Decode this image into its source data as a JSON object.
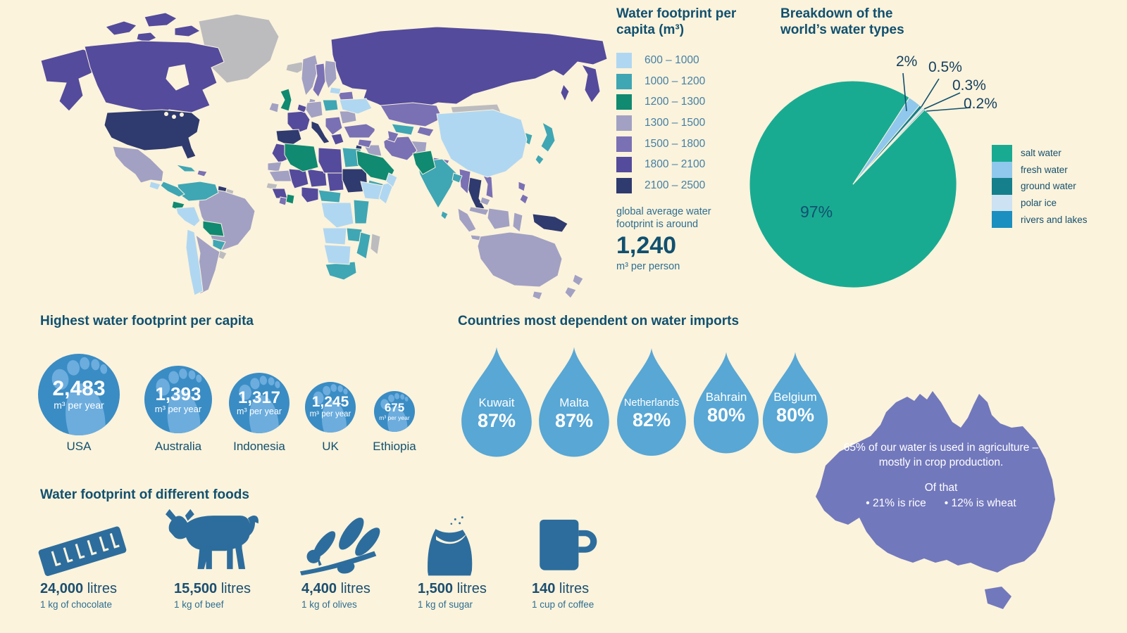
{
  "palette": {
    "background": "#fbf3dc",
    "nodata": "#bcbcbf",
    "b600": "#b0d7f1",
    "b1000": "#3fa6b4",
    "b1200": "#108a70",
    "b1300": "#a2a1c3",
    "b1500": "#7a70b4",
    "b1800": "#544b9c",
    "b2100": "#2f3a6e",
    "circle_blue": "#3a8cc4",
    "foot_light": "#6cadde",
    "drop_blue": "#58a7d5",
    "australia_fill": "#7278bc",
    "icon_blue": "#2d6d9d",
    "heading": "#11506f"
  },
  "map_legend": {
    "title": "Water footprint per capita (m³)",
    "bins": [
      {
        "label": "600 – 1000",
        "color": "#b0d7f1"
      },
      {
        "label": "1000 – 1200",
        "color": "#3fa6b4"
      },
      {
        "label": "1200 – 1300",
        "color": "#108a70"
      },
      {
        "label": "1300 – 1500",
        "color": "#a2a1c3"
      },
      {
        "label": "1500 – 1800",
        "color": "#7a70b4"
      },
      {
        "label": "1800 – 2100",
        "color": "#544b9c"
      },
      {
        "label": "2100 – 2500",
        "color": "#2f3a6e"
      }
    ],
    "note": "global average water footprint is around",
    "average_value": "1,240",
    "average_unit": "m³ per person"
  },
  "pie": {
    "title": "Breakdown of the world’s water types",
    "slices": [
      {
        "label": "salt water",
        "pct": 97,
        "display": "97%",
        "color": "#19ab92"
      },
      {
        "label": "fresh water",
        "pct": 2,
        "display": "2%",
        "color": "#8fc8ec"
      },
      {
        "label": "ground water",
        "pct": 0.5,
        "display": "0.5%",
        "color": "#157f8b"
      },
      {
        "label": "polar ice",
        "pct": 0.3,
        "display": "0.3%",
        "color": "#cde2f2"
      },
      {
        "label": "rivers and lakes",
        "pct": 0.2,
        "display": "0.2%",
        "color": "#1b8fbf"
      }
    ]
  },
  "footprints": {
    "title": "Highest water footprint per capita",
    "unit": "m³ per year",
    "items": [
      {
        "country": "USA",
        "value": "2,483"
      },
      {
        "country": "Australia",
        "value": "1,393"
      },
      {
        "country": "Indonesia",
        "value": "1,317"
      },
      {
        "country": "UK",
        "value": "1,245"
      },
      {
        "country": "Ethiopia",
        "value": "675"
      }
    ]
  },
  "imports": {
    "title": "Countries most dependent on water imports",
    "items": [
      {
        "country": "Kuwait",
        "pct": "87%"
      },
      {
        "country": "Malta",
        "pct": "87%"
      },
      {
        "country": "Netherlands",
        "pct": "82%"
      },
      {
        "country": "Bahrain",
        "pct": "80%"
      },
      {
        "country": "Belgium",
        "pct": "80%"
      }
    ]
  },
  "australia": {
    "line1": "65% of our water is used in agriculture – mostly in crop production.",
    "line2": "Of that",
    "bullet1": "• 21% is rice",
    "bullet2": "• 12% is wheat"
  },
  "foods": {
    "title": "Water footprint of different foods",
    "items": [
      {
        "value": "24,000",
        "unit": " litres",
        "caption": "1 kg of chocolate"
      },
      {
        "value": "15,500",
        "unit": " litres",
        "caption": "1 kg of beef"
      },
      {
        "value": "4,400",
        "unit": " litres",
        "caption": "1 kg of olives"
      },
      {
        "value": "1,500",
        "unit": " litres",
        "caption": "1 kg of sugar"
      },
      {
        "value": "140",
        "unit": " litres",
        "caption": "1 cup of coffee"
      }
    ]
  },
  "chart_data": [
    {
      "type": "choropleth",
      "title": "Water footprint per capita (m³)",
      "legend_bins": [
        "600 – 1000",
        "1000 – 1200",
        "1200 – 1300",
        "1300 – 1500",
        "1500 – 1800",
        "1800 – 2100",
        "2100 – 2500"
      ],
      "legend_colors": [
        "#b0d7f1",
        "#3fa6b4",
        "#108a70",
        "#a2a1c3",
        "#7a70b4",
        "#544b9c",
        "#2f3a6e"
      ],
      "annotation": "global average water footprint is around 1,240 m³ per person"
    },
    {
      "type": "pie",
      "title": "Breakdown of the world’s water types",
      "categories": [
        "salt water",
        "fresh water",
        "ground water",
        "polar ice",
        "rivers and lakes"
      ],
      "values": [
        97,
        2,
        0.5,
        0.3,
        0.2
      ],
      "value_labels": [
        "97%",
        "2%",
        "0.5%",
        "0.3%",
        "0.2%"
      ],
      "colors": [
        "#19ab92",
        "#8fc8ec",
        "#157f8b",
        "#cde2f2",
        "#1b8fbf"
      ],
      "legend_position": "right"
    },
    {
      "type": "proportional-circles",
      "title": "Highest water footprint per capita",
      "categories": [
        "USA",
        "Australia",
        "Indonesia",
        "UK",
        "Ethiopia"
      ],
      "values": [
        2483,
        1393,
        1317,
        1245,
        675
      ],
      "unit": "m³ per year"
    },
    {
      "type": "pictogram-drops",
      "title": "Countries most dependent on water imports",
      "categories": [
        "Kuwait",
        "Malta",
        "Netherlands",
        "Bahrain",
        "Belgium"
      ],
      "values": [
        87,
        87,
        82,
        80,
        80
      ],
      "unit": "%"
    },
    {
      "type": "pictogram-foods",
      "title": "Water footprint of different foods",
      "categories": [
        "1 kg of chocolate",
        "1 kg of beef",
        "1 kg of olives",
        "1 kg of sugar",
        "1 cup of coffee"
      ],
      "values": [
        24000,
        15500,
        4400,
        1500,
        140
      ],
      "unit": "litres"
    },
    {
      "type": "annotation",
      "title": "Australia water use",
      "values": [
        65,
        21,
        12
      ],
      "text": "65% of our water is used in agriculture – mostly in crop production. Of that • 21% is rice • 12% is wheat"
    }
  ]
}
